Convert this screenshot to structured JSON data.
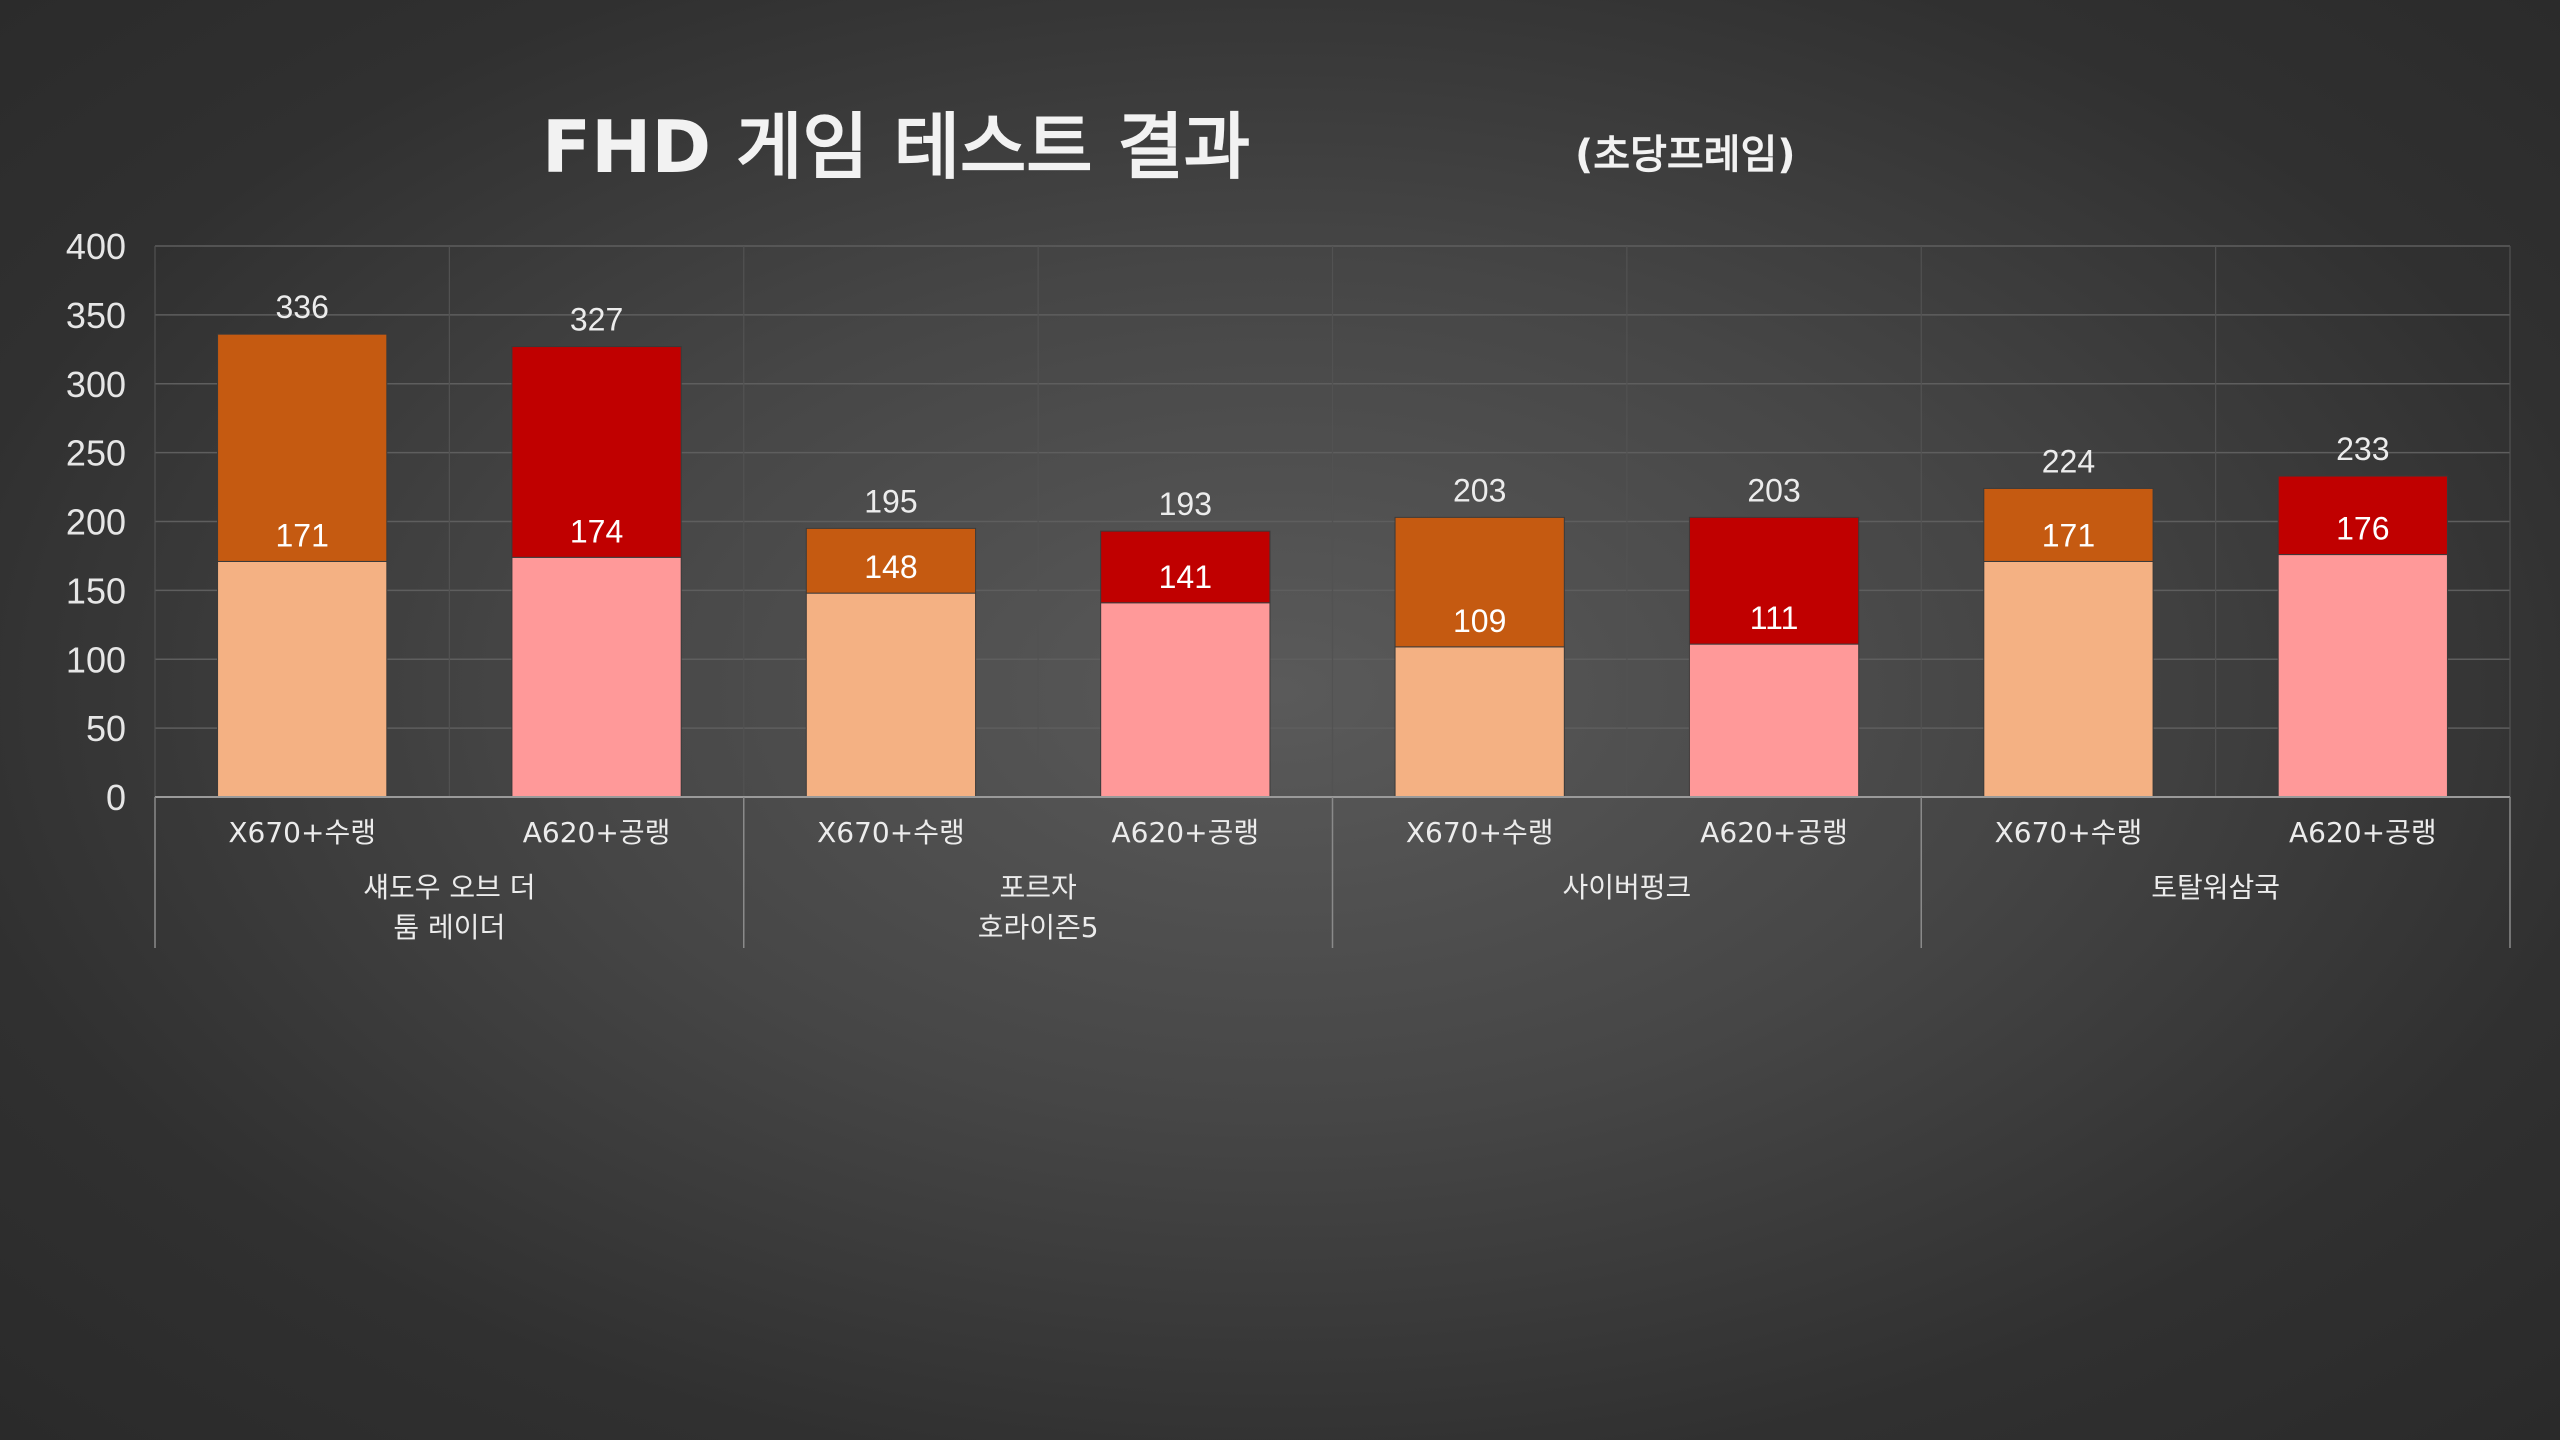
{
  "chart_data": {
    "type": "bar",
    "stacked": true,
    "title": "FHD 게임 테스트 결과",
    "subtitle": "(초당프레임)",
    "ylim": [
      0,
      400
    ],
    "yticks": [
      0,
      50,
      100,
      150,
      200,
      250,
      300,
      350,
      400
    ],
    "grid": true,
    "groups": [
      {
        "label_lines": [
          "섀도우 오브 더",
          "툼 레이더"
        ],
        "bars": [
          {
            "label": "X670+수랭",
            "base": 171,
            "total": 336,
            "base_color": "#f4b183",
            "top_color": "#c55a11"
          },
          {
            "label": "A620+공랭",
            "base": 174,
            "total": 327,
            "base_color": "#ff9999",
            "top_color": "#c00000"
          }
        ]
      },
      {
        "label_lines": [
          "포르자",
          "호라이즌5"
        ],
        "bars": [
          {
            "label": "X670+수랭",
            "base": 148,
            "total": 195,
            "base_color": "#f4b183",
            "top_color": "#c55a11"
          },
          {
            "label": "A620+공랭",
            "base": 141,
            "total": 193,
            "base_color": "#ff9999",
            "top_color": "#c00000"
          }
        ]
      },
      {
        "label_lines": [
          "사이버펑크"
        ],
        "bars": [
          {
            "label": "X670+수랭",
            "base": 109,
            "total": 203,
            "base_color": "#f4b183",
            "top_color": "#c55a11"
          },
          {
            "label": "A620+공랭",
            "base": 111,
            "total": 203,
            "base_color": "#ff9999",
            "top_color": "#c00000"
          }
        ]
      },
      {
        "label_lines": [
          "토탈워삼국"
        ],
        "bars": [
          {
            "label": "X670+수랭",
            "base": 171,
            "total": 224,
            "base_color": "#f4b183",
            "top_color": "#c55a11"
          },
          {
            "label": "A620+공랭",
            "base": 176,
            "total": 233,
            "base_color": "#ff9999",
            "top_color": "#c00000"
          }
        ]
      }
    ]
  }
}
